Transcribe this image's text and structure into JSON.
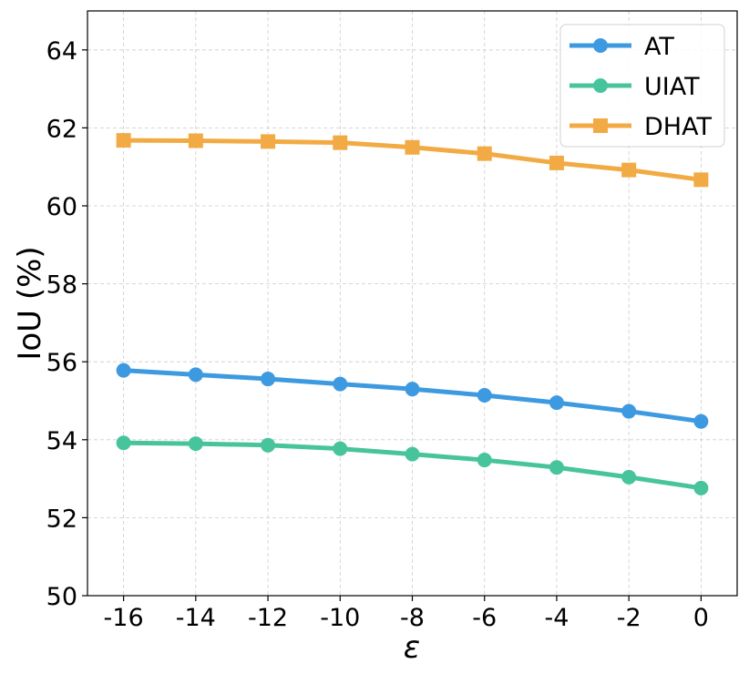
{
  "chart_data": {
    "type": "line",
    "xlabel": "ε",
    "ylabel": "IoU (%)",
    "x": [
      -16,
      -14,
      -12,
      -10,
      -8,
      -6,
      -4,
      -2,
      0
    ],
    "xticks": [
      "-16",
      "-14",
      "-12",
      "-10",
      "-8",
      "-6",
      "-4",
      "-2",
      "0"
    ],
    "yticks": [
      "50",
      "52",
      "54",
      "56",
      "58",
      "60",
      "62",
      "64"
    ],
    "xlim": [
      -17,
      1
    ],
    "ylim": [
      50,
      65
    ],
    "grid": true,
    "legend_position": "top-right",
    "series": [
      {
        "name": "AT",
        "color": "#3d9ae0",
        "marker": "circle",
        "values": [
          55.78,
          55.67,
          55.56,
          55.43,
          55.3,
          55.14,
          54.95,
          54.73,
          54.47
        ]
      },
      {
        "name": "UIAT",
        "color": "#48c49d",
        "marker": "circle",
        "values": [
          53.92,
          53.9,
          53.86,
          53.77,
          53.63,
          53.48,
          53.29,
          53.04,
          52.76
        ]
      },
      {
        "name": "DHAT",
        "color": "#f2ab44",
        "marker": "square",
        "values": [
          61.68,
          61.67,
          61.65,
          61.62,
          61.5,
          61.34,
          61.1,
          60.92,
          60.67
        ]
      }
    ]
  }
}
